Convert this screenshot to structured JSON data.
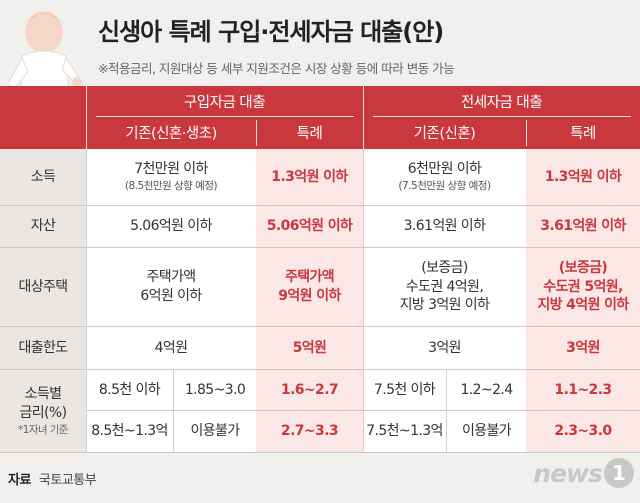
{
  "title": "신생아 특례 구입·전세자금 대출(안)",
  "subtitle": "※적용금리, 지원대상 등 세부 지원조건은 시장 상황 등에 따라 변동 가능",
  "header": {
    "purchase_group": "구입자금 대출",
    "jeonse_group": "전세자금 대출",
    "purchase_existing": "기존(신혼·생초)",
    "purchase_special": "특례",
    "jeonse_existing": "기존(신혼)",
    "jeonse_special": "특례"
  },
  "rows": {
    "income": {
      "label": "소득",
      "purchase_existing": "7천만원 이하",
      "purchase_existing_note": "(8.5천만원 상향 예정)",
      "purchase_special": "1.3억원 이하",
      "jeonse_existing": "6천만원 이하",
      "jeonse_existing_note": "(7.5천만원 상향 예정)",
      "jeonse_special": "1.3억원 이하"
    },
    "assets": {
      "label": "자산",
      "purchase_existing": "5.06억원 이하",
      "purchase_special": "5.06억원 이하",
      "jeonse_existing": "3.61억원 이하",
      "jeonse_special": "3.61억원 이하"
    },
    "housing": {
      "label": "대상주택",
      "purchase_existing_l1": "주택가액",
      "purchase_existing_l2": "6억원 이하",
      "purchase_special_l1": "주택가액",
      "purchase_special_l2": "9억원 이하",
      "jeonse_existing_l1": "(보증금)",
      "jeonse_existing_l2": "수도권 4억원,",
      "jeonse_existing_l3": "지방 3억원 이하",
      "jeonse_special_l1": "(보증금)",
      "jeonse_special_l2": "수도권 5억원,",
      "jeonse_special_l3": "지방 4억원 이하"
    },
    "limit": {
      "label": "대출한도",
      "purchase_existing": "4억원",
      "purchase_special": "5억원",
      "jeonse_existing": "3억원",
      "jeonse_special": "3억원"
    },
    "rate": {
      "label_l1": "소득별",
      "label_l2": "금리(%)",
      "label_note": "*1자녀 기준",
      "r1_purchase_income": "8.5천 이하",
      "r1_purchase_rate": "1.85~3.0",
      "r1_purchase_special": "1.6~2.7",
      "r1_jeonse_income": "7.5천 이하",
      "r1_jeonse_rate": "1.2~2.4",
      "r1_jeonse_special": "1.1~2.3",
      "r2_purchase_income": "8.5천~1.3억",
      "r2_purchase_rate": "이용불가",
      "r2_purchase_special": "2.7~3.3",
      "r2_jeonse_income": "7.5천~1.3억",
      "r2_jeonse_rate": "이용불가",
      "r2_jeonse_special": "2.3~3.0"
    }
  },
  "source": {
    "label": "자료",
    "value": "국토교통부"
  },
  "logo": {
    "text": "news",
    "badge": "1"
  },
  "colors": {
    "accent": "#c9383d",
    "special_bg": "#fbe8e6",
    "label_bg": "#e9e6e4"
  }
}
